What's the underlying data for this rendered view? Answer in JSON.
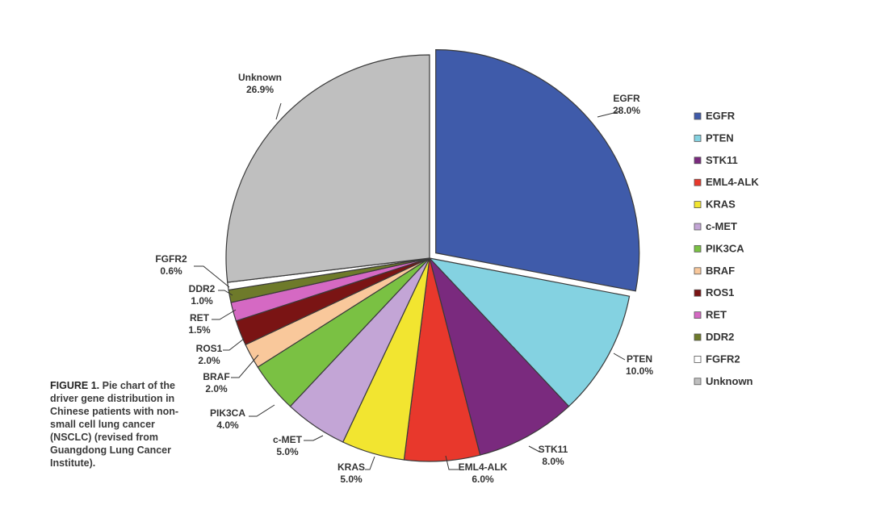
{
  "caption": {
    "lead": "FIGURE 1.",
    "text": "Pie chart of the driver gene distribution in Chinese patients with non-small cell lung cancer (NSCLC) (revised from Guangdong Lung Cancer Institute)."
  },
  "chart_data": {
    "type": "pie",
    "legend_position": "right",
    "exploded": [
      "EGFR"
    ],
    "slices": [
      {
        "name": "EGFR",
        "value": 28.0,
        "label": "28.0%",
        "color": "#3F5BAA"
      },
      {
        "name": "PTEN",
        "value": 10.0,
        "label": "10.0%",
        "color": "#84D2E1"
      },
      {
        "name": "STK11",
        "value": 8.0,
        "label": "8.0%",
        "color": "#7A2A7E"
      },
      {
        "name": "EML4-ALK",
        "value": 6.0,
        "label": "6.0%",
        "color": "#E8382C"
      },
      {
        "name": "KRAS",
        "value": 5.0,
        "label": "5.0%",
        "color": "#F2E530"
      },
      {
        "name": "c-MET",
        "value": 5.0,
        "label": "5.0%",
        "color": "#C3A5D6"
      },
      {
        "name": "PIK3CA",
        "value": 4.0,
        "label": "4.0%",
        "color": "#7AC143"
      },
      {
        "name": "BRAF",
        "value": 2.0,
        "label": "2.0%",
        "color": "#F9C89B"
      },
      {
        "name": "ROS1",
        "value": 2.0,
        "label": "2.0%",
        "color": "#7A1414"
      },
      {
        "name": "RET",
        "value": 1.5,
        "label": "1.5%",
        "color": "#D569C3"
      },
      {
        "name": "DDR2",
        "value": 1.0,
        "label": "1.0%",
        "color": "#6E7A2A"
      },
      {
        "name": "FGFR2",
        "value": 0.6,
        "label": "0.6%",
        "color": "#FFFFFF"
      },
      {
        "name": "Unknown",
        "value": 26.9,
        "label": "26.9%",
        "color": "#BFBFBF"
      }
    ],
    "legend": [
      "EGFR",
      "PTEN",
      "STK11",
      "EML4-ALK",
      "KRAS",
      "c-MET",
      "PIK3CA",
      "BRAF",
      "ROS1",
      "RET",
      "DDR2",
      "FGFR2",
      "Unknown"
    ]
  }
}
